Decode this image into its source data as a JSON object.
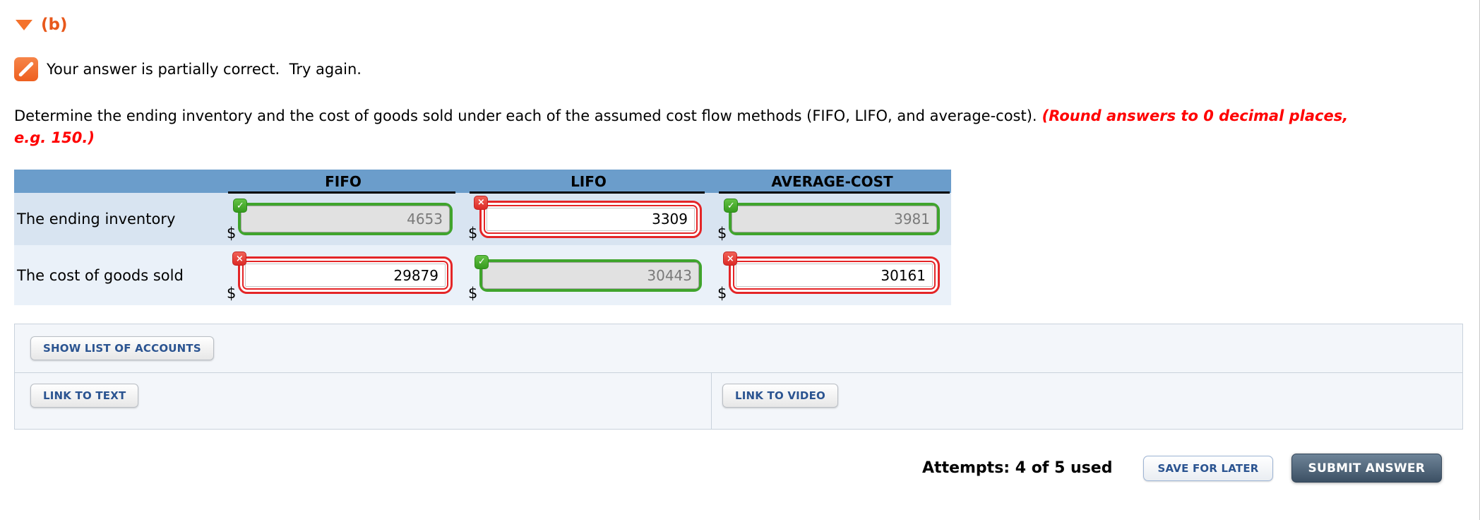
{
  "page": {
    "section_label": "(b)"
  },
  "feedback": {
    "message": "Your answer is partially correct.  Try again."
  },
  "question": {
    "text": "Determine the ending inventory and the cost of goods sold under each of the assumed cost flow methods (FIFO, LIFO, and average-cost).",
    "instruction": "(Round answers to 0 decimal places, e.g. 150.)"
  },
  "icons": {
    "check": "✓",
    "cross": "×"
  },
  "table": {
    "currency": "$",
    "columns": [
      "FIFO",
      "LIFO",
      "AVERAGE-COST"
    ],
    "rows": [
      {
        "label": "The ending inventory",
        "cells": [
          {
            "value": "4653",
            "status": "correct"
          },
          {
            "value": "3309",
            "status": "incorrect"
          },
          {
            "value": "3981",
            "status": "correct"
          }
        ]
      },
      {
        "label": "The cost of goods sold",
        "cells": [
          {
            "value": "29879",
            "status": "incorrect"
          },
          {
            "value": "30443",
            "status": "correct"
          },
          {
            "value": "30161",
            "status": "incorrect"
          }
        ]
      }
    ]
  },
  "actions": {
    "show_list_of_accounts": "SHOW LIST OF ACCOUNTS",
    "link_to_text": "LINK TO TEXT",
    "link_to_video": "LINK TO VIDEO"
  },
  "footer": {
    "attempts_label": "Attempts: 4 of 5 used",
    "save_for_later": "SAVE FOR LATER",
    "submit_answer": "SUBMIT ANSWER"
  },
  "colors": {
    "header_blue": "#6b9dcb",
    "row_shade_dark": "#d8e4f1",
    "row_shade_light": "#eaf1f9",
    "correct_green": "#3fa42c",
    "incorrect_red": "#e42527",
    "accent_orange": "#f4722c",
    "instruction_red": "#ff0000",
    "button_text_blue": "#2b5491",
    "submit_slate": "#3c5064"
  }
}
